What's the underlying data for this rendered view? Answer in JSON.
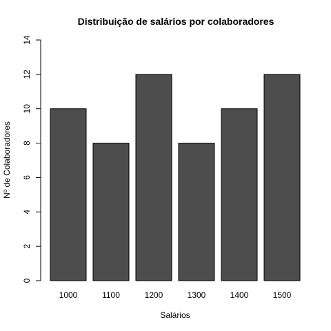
{
  "chart_data": {
    "type": "bar",
    "title": "Distribuição de salários por colaboradores",
    "xlabel": "Salários",
    "ylabel": "Nº de Colaboradores",
    "categories": [
      "1000",
      "1100",
      "1200",
      "1300",
      "1400",
      "1500"
    ],
    "values": [
      10,
      8,
      12,
      8,
      10,
      12
    ],
    "ylim": [
      0,
      14
    ],
    "yticks": [
      "0",
      "2",
      "4",
      "6",
      "8",
      "10",
      "12",
      "14"
    ],
    "bar_color": "#4d4d4d",
    "grid": false,
    "legend": "none"
  }
}
